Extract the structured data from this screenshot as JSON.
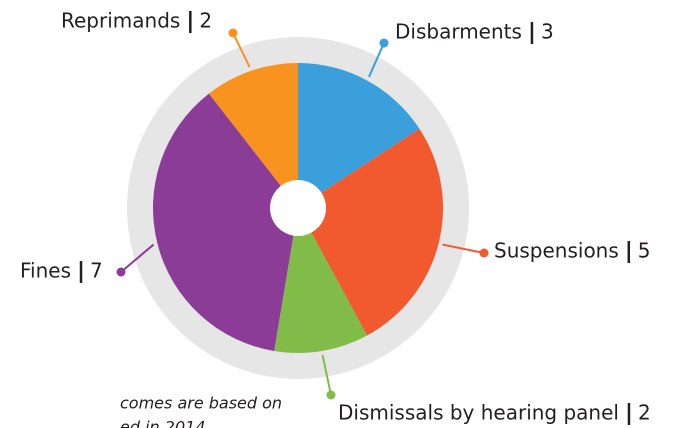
{
  "chart_data": {
    "type": "donut",
    "categories": [
      "Disbarments",
      "Suspensions",
      "Dismissals by hearing panel",
      "Fines",
      "Reprimands"
    ],
    "values": [
      3,
      5,
      2,
      7,
      2
    ],
    "colors": [
      "#3a9fdb",
      "#f15a2f",
      "#82bc48",
      "#8b3c97",
      "#f7931e"
    ],
    "footnote": [
      "comes are based on",
      "ed in 2014"
    ]
  }
}
